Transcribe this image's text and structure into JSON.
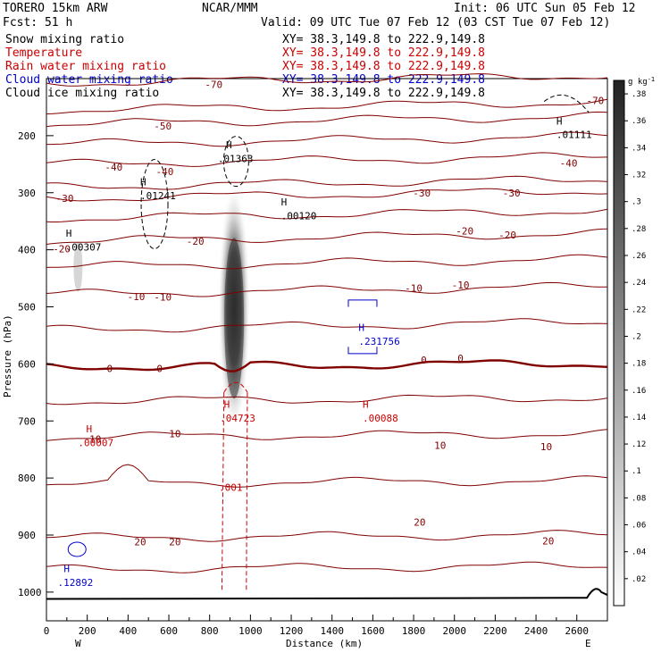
{
  "header": {
    "model": "TORERO  15km ARW",
    "center": "NCAR/MMM",
    "init": "Init: 06 UTC Sun 05 Feb 12",
    "fcst": "Fcst:   51 h",
    "valid": "Valid: 09 UTC Tue 07 Feb 12 (03 CST Tue 07 Feb 12)"
  },
  "fields": [
    {
      "name": "Snow mixing ratio",
      "xy": "XY=  38.3,149.8 to 222.9,149.8",
      "color": "#000000"
    },
    {
      "name": "Temperature",
      "xy": "XY=  38.3,149.8 to 222.9,149.8",
      "color": "#cc0000"
    },
    {
      "name": "Rain water mixing ratio",
      "xy": "XY=  38.3,149.8 to 222.9,149.8",
      "color": "#cc0000"
    },
    {
      "name": "Cloud water mixing ratio",
      "xy": "XY=  38.3,149.8 to 222.9,149.8",
      "color": "#0000cc"
    },
    {
      "name": "Cloud ice mixing ratio",
      "xy": "XY=  38.3,149.8 to 222.9,149.8",
      "color": "#000000"
    }
  ],
  "chart_data": {
    "type": "cross-section",
    "xlabel": "Distance (km)",
    "ylabel": "Pressure (hPa)",
    "x_ticks": [
      0,
      100,
      200,
      300,
      400,
      500,
      600,
      700,
      800,
      900,
      1000,
      1100,
      1200,
      1300,
      1400,
      1500,
      1600,
      1700,
      1800,
      1900,
      2000,
      2100,
      2200,
      2300,
      2400,
      2500,
      2600
    ],
    "x_tick_labels": [
      "0",
      "200",
      "400",
      "600",
      "800",
      "1000",
      "1200",
      "1400",
      "1600",
      "1800",
      "2000",
      "2200",
      "2400",
      "2600"
    ],
    "y_ticks": [
      200,
      300,
      400,
      500,
      600,
      700,
      800,
      900,
      1000
    ],
    "xlim": [
      0,
      2750
    ],
    "ylim": [
      1050,
      100
    ],
    "left_end_label": "W",
    "right_end_label": "E",
    "colorbar": {
      "unit": "g kg",
      "unit_exp": "-1",
      "ticks": [
        ".02",
        ".04",
        ".06",
        ".08",
        ".1",
        ".12",
        ".14",
        ".16",
        ".18",
        ".2",
        ".22",
        ".24",
        ".26",
        ".28",
        ".3",
        ".32",
        ".34",
        ".36",
        ".38"
      ]
    },
    "isotherm_labels": [
      {
        "text": "-70",
        "x": 820,
        "p": 110,
        "color": "#800000"
      },
      {
        "text": "-70",
        "x": 2690,
        "p": 138,
        "color": "#800000"
      },
      {
        "text": "-50",
        "x": 570,
        "p": 183,
        "color": "#800000"
      },
      {
        "text": "-40",
        "x": 330,
        "p": 255,
        "color": "#800000"
      },
      {
        "text": "-40",
        "x": 580,
        "p": 263,
        "color": "#800000"
      },
      {
        "text": "-40",
        "x": 2560,
        "p": 248,
        "color": "#800000"
      },
      {
        "text": "-30",
        "x": 90,
        "p": 310,
        "color": "#800000"
      },
      {
        "text": "-30",
        "x": 1840,
        "p": 300,
        "color": "#800000"
      },
      {
        "text": "-30",
        "x": 2280,
        "p": 300,
        "color": "#800000"
      },
      {
        "text": "-20",
        "x": 75,
        "p": 398,
        "color": "#800000"
      },
      {
        "text": "-20",
        "x": 730,
        "p": 385,
        "color": "#800000"
      },
      {
        "text": "-20",
        "x": 2050,
        "p": 367,
        "color": "#800000"
      },
      {
        "text": "-20",
        "x": 2260,
        "p": 374,
        "color": "#800000"
      },
      {
        "text": "-10",
        "x": 440,
        "p": 482,
        "color": "#800000"
      },
      {
        "text": "-10",
        "x": 570,
        "p": 483,
        "color": "#800000"
      },
      {
        "text": "-10",
        "x": 1800,
        "p": 467,
        "color": "#800000"
      },
      {
        "text": "-10",
        "x": 2030,
        "p": 462,
        "color": "#800000"
      },
      {
        "text": "0",
        "x": 310,
        "p": 608,
        "color": "#800000"
      },
      {
        "text": "0",
        "x": 555,
        "p": 608,
        "color": "#800000"
      },
      {
        "text": "0",
        "x": 1850,
        "p": 593,
        "color": "#800000"
      },
      {
        "text": "0",
        "x": 2030,
        "p": 590,
        "color": "#800000"
      },
      {
        "text": "10",
        "x": 240,
        "p": 732,
        "color": "#800000"
      },
      {
        "text": "10",
        "x": 630,
        "p": 722,
        "color": "#800000"
      },
      {
        "text": "10",
        "x": 1930,
        "p": 743,
        "color": "#800000"
      },
      {
        "text": "10",
        "x": 2450,
        "p": 745,
        "color": "#800000"
      },
      {
        "text": "20",
        "x": 460,
        "p": 912,
        "color": "#800000"
      },
      {
        "text": "20",
        "x": 630,
        "p": 912,
        "color": "#800000"
      },
      {
        "text": "20",
        "x": 1830,
        "p": 877,
        "color": "#800000"
      },
      {
        "text": "20",
        "x": 2460,
        "p": 910,
        "color": "#800000"
      }
    ],
    "maxima_labels": [
      {
        "text": ".00307",
        "x": 95,
        "p": 395,
        "color": "#000000"
      },
      {
        "text": ".01241",
        "x": 460,
        "p": 305,
        "color": "#000000"
      },
      {
        "text": ".01363",
        "x": 840,
        "p": 240,
        "color": "#000000"
      },
      {
        "text": ".00120",
        "x": 1150,
        "p": 340,
        "color": "#000000"
      },
      {
        "text": ".01111",
        "x": 2500,
        "p": 198,
        "color": "#000000"
      },
      {
        "text": ".231756",
        "x": 1530,
        "p": 560,
        "color": "#0000cc"
      },
      {
        "text": ".04723",
        "x": 850,
        "p": 695,
        "color": "#cc0000"
      },
      {
        "text": ".00088",
        "x": 1550,
        "p": 695,
        "color": "#cc0000"
      },
      {
        "text": ".00007",
        "x": 155,
        "p": 738,
        "color": "#cc0000"
      },
      {
        "text": ".001",
        "x": 845,
        "p": 816,
        "color": "#cc0000"
      },
      {
        "text": ".12892",
        "x": 55,
        "p": 983,
        "color": "#0000cc"
      }
    ],
    "high_markers": [
      {
        "text": "H",
        "x": 95,
        "p": 371,
        "color": "#000000"
      },
      {
        "text": "H",
        "x": 460,
        "p": 281,
        "color": "#000000"
      },
      {
        "text": "H",
        "x": 880,
        "p": 216,
        "color": "#000000"
      },
      {
        "text": "H",
        "x": 1150,
        "p": 316,
        "color": "#000000"
      },
      {
        "text": "H",
        "x": 2500,
        "p": 174,
        "color": "#000000"
      },
      {
        "text": "H",
        "x": 1530,
        "p": 536,
        "color": "#0000cc"
      },
      {
        "text": "H",
        "x": 870,
        "p": 671,
        "color": "#cc0000"
      },
      {
        "text": "H",
        "x": 1550,
        "p": 671,
        "color": "#cc0000"
      },
      {
        "text": "H",
        "x": 195,
        "p": 714,
        "color": "#cc0000"
      },
      {
        "text": "H",
        "x": 85,
        "p": 959,
        "color": "#0000cc"
      }
    ],
    "isotherm_colors": {
      "normal": "#800000",
      "zero": "#800000"
    }
  }
}
